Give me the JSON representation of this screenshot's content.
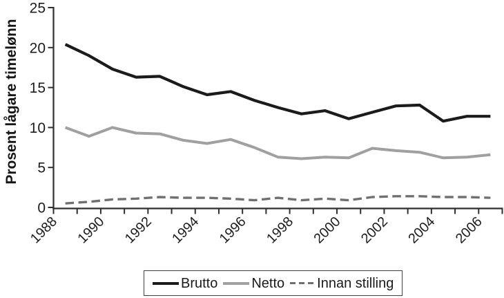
{
  "figure": {
    "background": "#ffffff",
    "axis_color": "#2e2e2e",
    "tick_label_color": "#1c1c1c"
  },
  "chart_data": {
    "type": "line",
    "title": "",
    "xlabel": "",
    "ylabel": "Prosent lågare timelønn",
    "ylim": [
      0,
      25
    ],
    "y_ticks": [
      0,
      5,
      10,
      15,
      20,
      25
    ],
    "grid": false,
    "legend_position": "bottom-center",
    "x": [
      1988,
      1989,
      1990,
      1991,
      1992,
      1993,
      1994,
      1995,
      1996,
      1997,
      1998,
      1999,
      2000,
      2001,
      2002,
      2003,
      2004,
      2005,
      2006
    ],
    "x_axis_tick_years": [
      1988,
      1989,
      1990,
      1991,
      1992,
      1993,
      1994,
      1995,
      1996,
      1997,
      1998,
      1999,
      2000,
      2001,
      2002,
      2003,
      2004,
      2005,
      2006,
      2007
    ],
    "x_axis_labeled_years": [
      1988,
      1990,
      1992,
      1994,
      1996,
      1998,
      2000,
      2002,
      2004,
      2006
    ],
    "series": [
      {
        "name": "Brutto",
        "color": "#1b1b1b",
        "line_style": "solid",
        "values": [
          20.4,
          19.0,
          17.3,
          16.3,
          16.4,
          15.1,
          14.1,
          14.5,
          13.4,
          12.5,
          11.7,
          12.1,
          11.1,
          11.9,
          12.7,
          12.8,
          10.8,
          11.4,
          11.4
        ]
      },
      {
        "name": "Netto",
        "color": "#a0a0a0",
        "line_style": "solid",
        "values": [
          10.0,
          8.9,
          10.0,
          9.3,
          9.2,
          8.4,
          8.0,
          8.5,
          7.5,
          6.3,
          6.1,
          6.3,
          6.2,
          7.4,
          7.1,
          6.9,
          6.2,
          6.3,
          6.6
        ]
      },
      {
        "name": "Innan stilling",
        "color": "#707070",
        "line_style": "dashed",
        "values": [
          0.5,
          0.7,
          1.0,
          1.1,
          1.3,
          1.2,
          1.2,
          1.1,
          0.9,
          1.2,
          0.9,
          1.1,
          0.9,
          1.3,
          1.4,
          1.4,
          1.3,
          1.3,
          1.2
        ]
      }
    ]
  }
}
